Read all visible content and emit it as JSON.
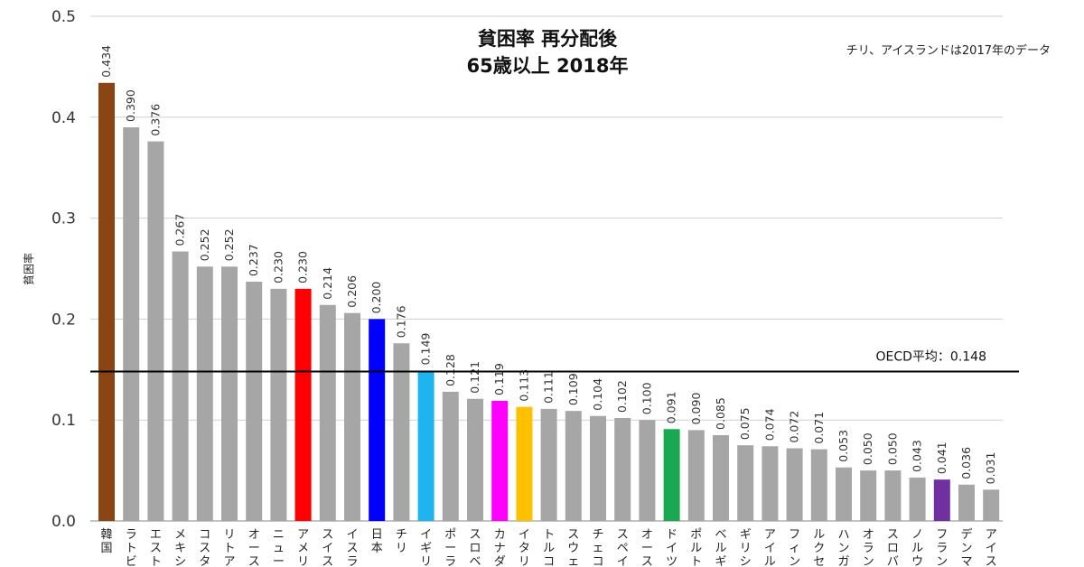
{
  "chart_data": {
    "type": "bar",
    "title": "貧困率 再分配後",
    "subtitle": "65歳以上 2018年",
    "note": "チリ、アイスランドは2017年のデータ",
    "ylabel": "貧困率",
    "xlabel": "",
    "ylim": [
      0,
      0.5
    ],
    "yticks": [
      "0.0",
      "0.1",
      "0.2",
      "0.3",
      "0.4",
      "0.5"
    ],
    "grid": true,
    "reference_line": {
      "label": "OECD平均：0.148",
      "value": 0.148
    },
    "categories": [
      "韓国",
      "ラトビ",
      "エスト",
      "メキシ",
      "コスタ",
      "リトア",
      "オース",
      "ニュー",
      "アメリ",
      "スイス",
      "イスラ",
      "日本",
      "チリ",
      "イギリ",
      "ポーラ",
      "スロベ",
      "カナダ",
      "イタリ",
      "トルコ",
      "スウェ",
      "チェコ",
      "スペイ",
      "オース",
      "ドイツ",
      "ポルト",
      "ベルギ",
      "ギリシ",
      "アイル",
      "フィン",
      "ルクセ",
      "ハンガ",
      "オラン",
      "スロバ",
      "ノルウ",
      "フラン",
      "デンマ",
      "アイス"
    ],
    "values": [
      0.434,
      0.39,
      0.376,
      0.267,
      0.252,
      0.252,
      0.237,
      0.23,
      0.23,
      0.214,
      0.206,
      0.2,
      0.176,
      0.149,
      0.128,
      0.121,
      0.119,
      0.113,
      0.111,
      0.109,
      0.104,
      0.102,
      0.1,
      0.091,
      0.09,
      0.085,
      0.075,
      0.074,
      0.072,
      0.071,
      0.053,
      0.05,
      0.05,
      0.043,
      0.041,
      0.036,
      0.031
    ],
    "value_labels": [
      "0.434",
      "0.390",
      "0.376",
      "0.267",
      "0.252",
      "0.252",
      "0.237",
      "0.230",
      "0.230",
      "0.214",
      "0.206",
      "0.200",
      "0.176",
      "0.149",
      "0.128",
      "0.121",
      "0.119",
      "0.113",
      "0.111",
      "0.109",
      "0.104",
      "0.102",
      "0.100",
      "0.091",
      "0.090",
      "0.085",
      "0.075",
      "0.074",
      "0.072",
      "0.071",
      "0.053",
      "0.050",
      "0.050",
      "0.043",
      "0.041",
      "0.036",
      "0.031"
    ],
    "colors": [
      "#8B4513",
      "#A6A6A6",
      "#A6A6A6",
      "#A6A6A6",
      "#A6A6A6",
      "#A6A6A6",
      "#A6A6A6",
      "#A6A6A6",
      "#FF0000",
      "#A6A6A6",
      "#A6A6A6",
      "#0000FF",
      "#A6A6A6",
      "#1EB4F0",
      "#A6A6A6",
      "#A6A6A6",
      "#FF00FF",
      "#FFC000",
      "#A6A6A6",
      "#A6A6A6",
      "#A6A6A6",
      "#A6A6A6",
      "#A6A6A6",
      "#1AA850",
      "#A6A6A6",
      "#A6A6A6",
      "#A6A6A6",
      "#A6A6A6",
      "#A6A6A6",
      "#A6A6A6",
      "#A6A6A6",
      "#A6A6A6",
      "#A6A6A6",
      "#A6A6A6",
      "#7030A0",
      "#A6A6A6",
      "#A6A6A6"
    ]
  }
}
